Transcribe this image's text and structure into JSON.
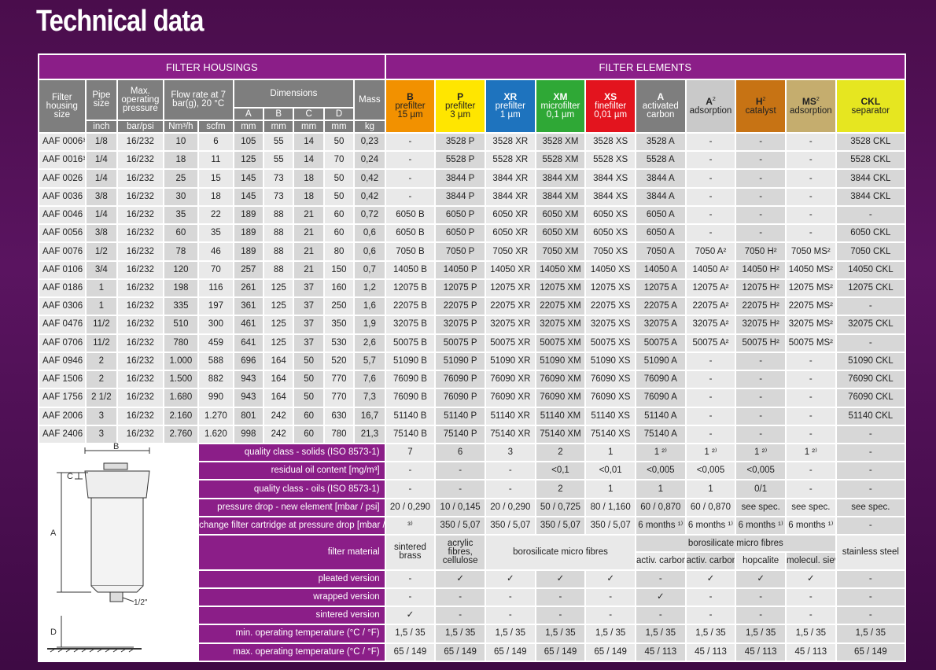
{
  "title": "Technical data",
  "sections": {
    "housings": "FILTER HOUSINGS",
    "elements": "FILTER ELEMENTS"
  },
  "columns": {
    "filter_housing_size": "Filter housing size",
    "pipe_size": "Pipe size",
    "max_pressure": "Max. operating pressure",
    "flow_rate": "Flow rate at 7 bar(g), 20 °C",
    "dimensions": "Dimensions",
    "mass": "Mass",
    "dims": [
      "A",
      "B",
      "C",
      "D"
    ],
    "units": [
      "inch",
      "bar/psi",
      "Nm³/h",
      "scfm",
      "mm",
      "mm",
      "mm",
      "mm",
      "kg"
    ]
  },
  "elements": [
    {
      "code": "B",
      "line1": "prefilter",
      "line2": "15 µm",
      "color": "#f29100",
      "text": "#222"
    },
    {
      "code": "P",
      "line1": "prefilter",
      "line2": "3 µm",
      "color": "#ffe600",
      "text": "#222"
    },
    {
      "code": "XR",
      "line1": "prefilter",
      "line2": "1 µm",
      "color": "#1e73be",
      "text": "#fff"
    },
    {
      "code": "XM",
      "line1": "microfilter",
      "line2": "0,1 µm",
      "color": "#2fa836",
      "text": "#fff"
    },
    {
      "code": "XS",
      "line1": "finefilter",
      "line2": "0,01 µm",
      "color": "#e3141e",
      "text": "#fff"
    },
    {
      "code": "A",
      "line1": "activated",
      "line2": "carbon",
      "color": "#7e7e7e",
      "text": "#fff"
    },
    {
      "code": "A",
      "sup": "2",
      "line1": "adsorption",
      "line2": "",
      "color": "#c9c9c9",
      "text": "#222"
    },
    {
      "code": "H",
      "sup": "2",
      "line1": "catalyst",
      "line2": "",
      "color": "#c77314",
      "text": "#222"
    },
    {
      "code": "MS",
      "sup": "2",
      "line1": "adsorption",
      "line2": "",
      "color": "#c5ad6e",
      "text": "#222"
    },
    {
      "code": "CKL",
      "line1": "separator",
      "line2": "",
      "color": "#e6e620",
      "text": "#222"
    }
  ],
  "rows": [
    [
      "AAF 0006³⁾",
      "1/8",
      "16/232",
      "10",
      "6",
      "105",
      "55",
      "14",
      "50",
      "0,23",
      "-",
      "3528 P",
      "3528 XR",
      "3528 XM",
      "3528 XS",
      "3528 A",
      "-",
      "-",
      "-",
      "3528 CKL"
    ],
    [
      "AAF 0016³⁾",
      "1/4",
      "16/232",
      "18",
      "11",
      "125",
      "55",
      "14",
      "70",
      "0,24",
      "-",
      "5528 P",
      "5528 XR",
      "5528 XM",
      "5528 XS",
      "5528 A",
      "-",
      "-",
      "-",
      "5528 CKL"
    ],
    [
      "AAF 0026",
      "1/4",
      "16/232",
      "25",
      "15",
      "145",
      "73",
      "18",
      "50",
      "0,42",
      "-",
      "3844 P",
      "3844 XR",
      "3844 XM",
      "3844 XS",
      "3844 A",
      "-",
      "-",
      "-",
      "3844 CKL"
    ],
    [
      "AAF 0036",
      "3/8",
      "16/232",
      "30",
      "18",
      "145",
      "73",
      "18",
      "50",
      "0,42",
      "-",
      "3844 P",
      "3844 XR",
      "3844 XM",
      "3844 XS",
      "3844 A",
      "-",
      "-",
      "-",
      "3844 CKL"
    ],
    [
      "AAF 0046",
      "1/4",
      "16/232",
      "35",
      "22",
      "189",
      "88",
      "21",
      "60",
      "0,72",
      "6050 B",
      "6050 P",
      "6050 XR",
      "6050 XM",
      "6050 XS",
      "6050 A",
      "-",
      "-",
      "-",
      "-"
    ],
    [
      "AAF 0056",
      "3/8",
      "16/232",
      "60",
      "35",
      "189",
      "88",
      "21",
      "60",
      "0,6",
      "6050 B",
      "6050 P",
      "6050 XR",
      "6050 XM",
      "6050 XS",
      "6050 A",
      "-",
      "-",
      "-",
      "6050 CKL"
    ],
    [
      "AAF 0076",
      "1/2",
      "16/232",
      "78",
      "46",
      "189",
      "88",
      "21",
      "80",
      "0,6",
      "7050 B",
      "7050 P",
      "7050 XR",
      "7050 XM",
      "7050 XS",
      "7050 A",
      "7050 A²",
      "7050 H²",
      "7050 MS²",
      "7050 CKL"
    ],
    [
      "AAF 0106",
      "3/4",
      "16/232",
      "120",
      "70",
      "257",
      "88",
      "21",
      "150",
      "0,7",
      "14050 B",
      "14050 P",
      "14050 XR",
      "14050 XM",
      "14050 XS",
      "14050 A",
      "14050 A²",
      "14050 H²",
      "14050 MS²",
      "14050 CKL"
    ],
    [
      "AAF 0186",
      "1",
      "16/232",
      "198",
      "116",
      "261",
      "125",
      "37",
      "160",
      "1,2",
      "12075 B",
      "12075 P",
      "12075 XR",
      "12075 XM",
      "12075 XS",
      "12075 A",
      "12075 A²",
      "12075 H²",
      "12075 MS²",
      "12075 CKL"
    ],
    [
      "AAF 0306",
      "1",
      "16/232",
      "335",
      "197",
      "361",
      "125",
      "37",
      "250",
      "1,6",
      "22075 B",
      "22075 P",
      "22075 XR",
      "22075 XM",
      "22075 XS",
      "22075 A",
      "22075 A²",
      "22075 H²",
      "22075 MS²",
      "-"
    ],
    [
      "AAF 0476",
      "11/2",
      "16/232",
      "510",
      "300",
      "461",
      "125",
      "37",
      "350",
      "1,9",
      "32075 B",
      "32075 P",
      "32075 XR",
      "32075 XM",
      "32075 XS",
      "32075 A",
      "32075 A²",
      "32075 H²",
      "32075 MS²",
      "32075 CKL"
    ],
    [
      "AAF 0706",
      "11/2",
      "16/232",
      "780",
      "459",
      "641",
      "125",
      "37",
      "530",
      "2,6",
      "50075 B",
      "50075 P",
      "50075 XR",
      "50075 XM",
      "50075 XS",
      "50075 A",
      "50075 A²",
      "50075 H²",
      "50075 MS²",
      "-"
    ],
    [
      "AAF 0946",
      "2",
      "16/232",
      "1.000",
      "588",
      "696",
      "164",
      "50",
      "520",
      "5,7",
      "51090 B",
      "51090 P",
      "51090 XR",
      "51090 XM",
      "51090 XS",
      "51090 A",
      "-",
      "-",
      "-",
      "51090 CKL"
    ],
    [
      "AAF 1506",
      "2",
      "16/232",
      "1.500",
      "882",
      "943",
      "164",
      "50",
      "770",
      "7,6",
      "76090 B",
      "76090 P",
      "76090 XR",
      "76090 XM",
      "76090 XS",
      "76090 A",
      "-",
      "-",
      "-",
      "76090 CKL"
    ],
    [
      "AAF 1756",
      "2 1/2",
      "16/232",
      "1.680",
      "990",
      "943",
      "164",
      "50",
      "770",
      "7,3",
      "76090 B",
      "76090 P",
      "76090 XR",
      "76090 XM",
      "76090 XS",
      "76090 A",
      "-",
      "-",
      "-",
      "76090 CKL"
    ],
    [
      "AAF 2006",
      "3",
      "16/232",
      "2.160",
      "1.270",
      "801",
      "242",
      "60",
      "630",
      "16,7",
      "51140 B",
      "51140 P",
      "51140 XR",
      "51140 XM",
      "51140 XS",
      "51140 A",
      "-",
      "-",
      "-",
      "51140 CKL"
    ],
    [
      "AAF 2406",
      "3",
      "16/232",
      "2.760",
      "1.620",
      "998",
      "242",
      "60",
      "780",
      "21,3",
      "75140 B",
      "75140 P",
      "75140 XR",
      "75140 XM",
      "75140 XS",
      "75140 A",
      "-",
      "-",
      "-",
      "-"
    ]
  ],
  "quality": [
    {
      "label": "quality class - solids (ISO 8573-1)",
      "values": [
        "7",
        "6",
        "3",
        "2",
        "1",
        "1 ²⁾",
        "1 ²⁾",
        "1 ²⁾",
        "1 ²⁾",
        "-"
      ]
    },
    {
      "label": "residual oil content [mg/m³]",
      "values": [
        "-",
        "-",
        "-",
        "<0,1",
        "<0,01",
        "<0,005",
        "<0,005",
        "<0,005",
        "-",
        "-"
      ]
    },
    {
      "label": "quality class - oils (ISO 8573-1)",
      "values": [
        "-",
        "-",
        "-",
        "2",
        "1",
        "1",
        "1",
        "0/1",
        "-",
        "-"
      ]
    },
    {
      "label": "pressure drop - new element [mbar / psi]",
      "values": [
        "20 / 0,290",
        "10 / 0,145",
        "20 / 0,290",
        "50 / 0,725",
        "80 / 1,160",
        "60 / 0,870",
        "60 / 0,870",
        "see spec.",
        "see spec.",
        "see spec."
      ]
    },
    {
      "label": "change filter cartridge at pressure drop [mbar / psi]",
      "values": [
        "³⁾",
        "350 / 5,07",
        "350 / 5,07",
        "350 / 5,07",
        "350 / 5,07",
        "6 months ¹⁾",
        "6 months ¹⁾",
        "6 months ¹⁾",
        "6 months ¹⁾",
        "-"
      ]
    }
  ],
  "material": {
    "label": "filter material",
    "sintered_brass": "sintered brass",
    "acrylic": "acrylic fibres, cellulose",
    "borosilicate_micro": "borosilicate micro fibres",
    "borosilicate_top": "borosilicate micro fibres",
    "activ1": "activ. carbon",
    "activ2": "activ. carbon",
    "hopcalite": "hopcalite",
    "molecul": "molecul. sieve",
    "stainless": "stainless steel"
  },
  "versions": [
    {
      "label": "pleated version",
      "values": [
        "-",
        "✓",
        "✓",
        "✓",
        "✓",
        "-",
        "✓",
        "✓",
        "✓",
        "-"
      ]
    },
    {
      "label": "wrapped version",
      "values": [
        "-",
        "-",
        "-",
        "-",
        "-",
        "✓",
        "-",
        "-",
        "-",
        "-"
      ]
    },
    {
      "label": "sintered version",
      "values": [
        "✓",
        "-",
        "-",
        "-",
        "-",
        "-",
        "-",
        "-",
        "-",
        "-"
      ]
    }
  ],
  "temps": [
    {
      "label": "min. operating temperature  (°C / °F)",
      "values": [
        "1,5 / 35",
        "1,5 / 35",
        "1,5 / 35",
        "1,5 / 35",
        "1,5 / 35",
        "1,5 / 35",
        "1,5 / 35",
        "1,5 / 35",
        "1,5 / 35",
        "1,5 / 35"
      ]
    },
    {
      "label": "max. operating temperature  (°C / °F)",
      "values": [
        "65 / 149",
        "65 / 149",
        "65 / 149",
        "65 / 149",
        "65 / 149",
        "45 / 113",
        "45 / 113",
        "45 / 113",
        "45 / 113",
        "65 / 149"
      ]
    }
  ],
  "diagram": {
    "A": "A",
    "B": "B",
    "C": "C",
    "D": "D",
    "port": "1/2\""
  }
}
